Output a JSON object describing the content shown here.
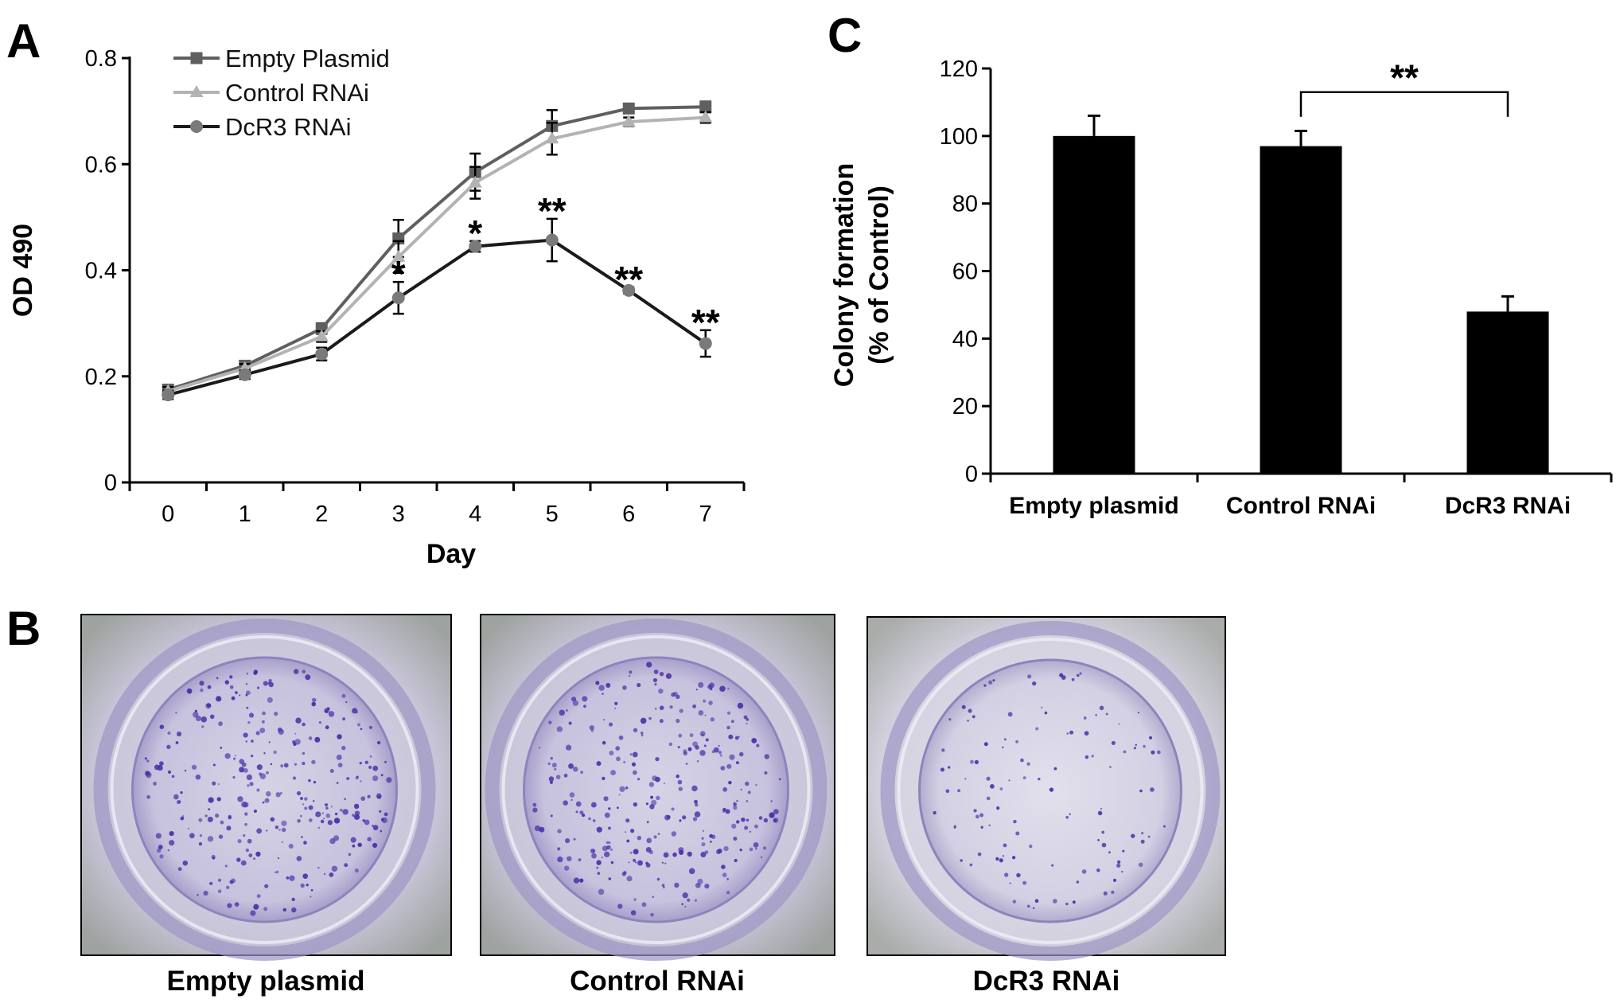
{
  "panels": {
    "a_label": "A",
    "b_label": "B",
    "c_label": "C"
  },
  "chart_data": [
    {
      "panel": "A",
      "type": "line",
      "xlabel": "Day",
      "ylabel": "OD 490",
      "x": [
        0,
        1,
        2,
        3,
        4,
        5,
        6,
        7
      ],
      "xlim": [
        -0.5,
        7.5
      ],
      "ylim": [
        0,
        0.8
      ],
      "yticks": [
        "0",
        "0.2",
        "0.4",
        "0.6",
        "0.8"
      ],
      "xticks": [
        "0",
        "1",
        "2",
        "3",
        "4",
        "5",
        "6",
        "7"
      ],
      "grid": false,
      "legend_position": "top-left",
      "series": [
        {
          "name": "Empty Plasmid",
          "marker": "square",
          "color": "#5f5f5f",
          "values": [
            0.175,
            0.22,
            0.29,
            0.46,
            0.585,
            0.672,
            0.705,
            0.708
          ],
          "errors": [
            0.008,
            0.008,
            0.01,
            0.035,
            0.035,
            0.03,
            0.008,
            0.01
          ]
        },
        {
          "name": "Control RNAi",
          "marker": "triangle",
          "color": "#b3b3b3",
          "values": [
            0.172,
            0.215,
            0.275,
            0.425,
            0.565,
            0.648,
            0.68,
            0.688
          ],
          "errors": [
            0.008,
            0.008,
            0.01,
            0.03,
            0.03,
            0.03,
            0.008,
            0.01
          ]
        },
        {
          "name": "DcR3 RNAi",
          "marker": "circle",
          "color": "#1a1a1a",
          "marker_color": "#7a7a7a",
          "values": [
            0.165,
            0.203,
            0.242,
            0.348,
            0.445,
            0.457,
            0.362,
            0.262
          ],
          "errors": [
            0.008,
            0.008,
            0.012,
            0.03,
            0.01,
            0.04,
            0.006,
            0.025
          ]
        }
      ],
      "annotations": [
        {
          "text": "*",
          "x": 3
        },
        {
          "text": "*",
          "x": 4
        },
        {
          "text": "**",
          "x": 5
        },
        {
          "text": "**",
          "x": 6
        },
        {
          "text": "**",
          "x": 7
        }
      ]
    },
    {
      "panel": "C",
      "type": "bar",
      "ylabel": "Colony formation (% of Control)",
      "ylabel_lines": [
        "Colony formation",
        "(% of Control)"
      ],
      "categories": [
        "Empty plasmid",
        "Control RNAi",
        "DcR3 RNAi"
      ],
      "values": [
        100,
        97,
        48
      ],
      "errors": [
        6,
        4.5,
        4.5
      ],
      "ylim": [
        0,
        120
      ],
      "yticks": [
        "0",
        "20",
        "40",
        "60",
        "80",
        "100",
        "120"
      ],
      "bar_color": "#000000",
      "grid": false,
      "significance": {
        "text": "**",
        "between": [
          1,
          2
        ]
      }
    }
  ],
  "dishes": [
    {
      "label": "Empty plasmid",
      "density": "high"
    },
    {
      "label": "Control RNAi",
      "density": "high"
    },
    {
      "label": "DcR3 RNAi",
      "density": "low"
    }
  ]
}
